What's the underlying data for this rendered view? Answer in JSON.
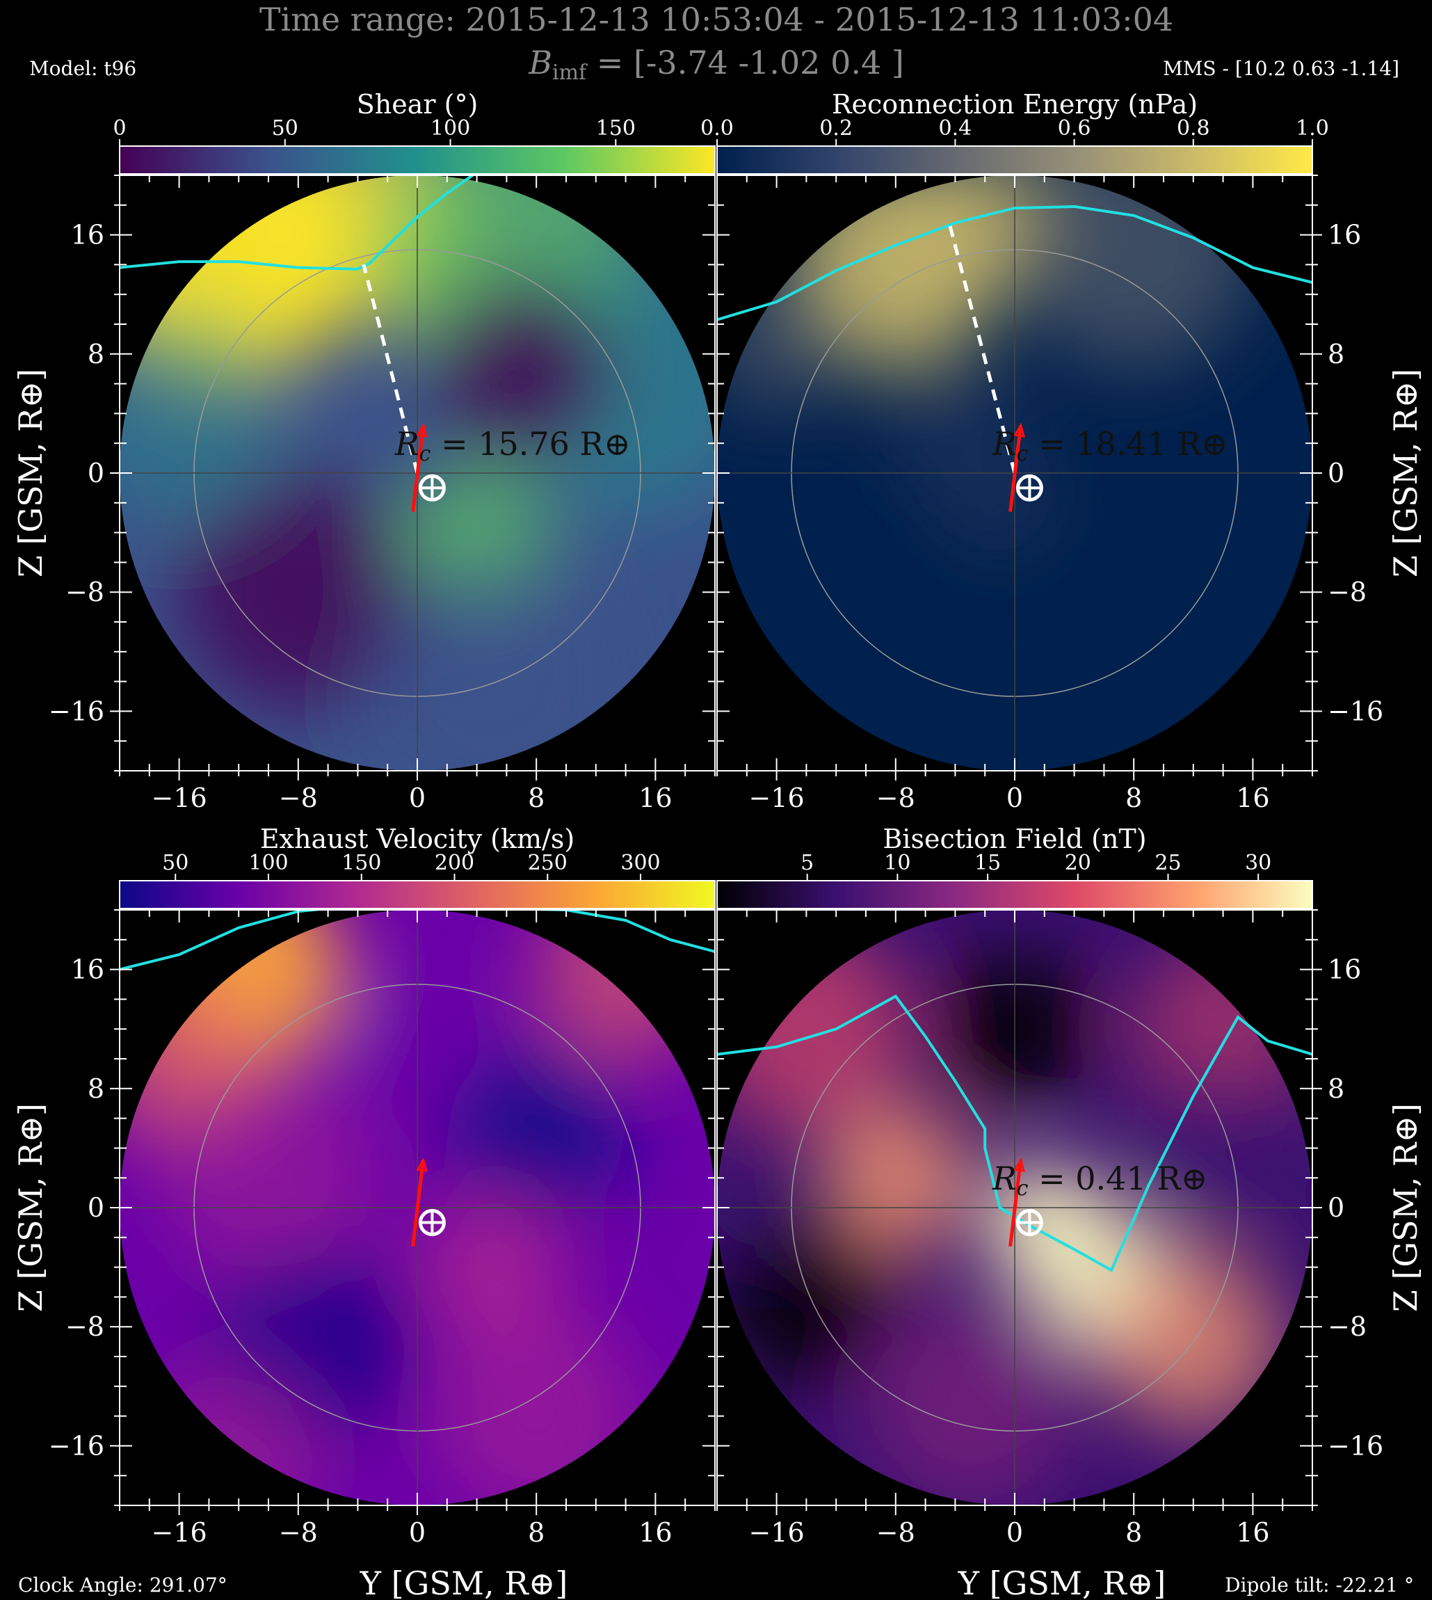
{
  "header": {
    "time_range": "Time range: 2015-12-13 10:53:04 - 2015-12-13 11:03:04",
    "bimf_label": "B",
    "bimf_sub": "imf",
    "bimf_value": " = [-3.74 -1.02 0.4 ]",
    "model": "Model: t96",
    "mms": "MMS - [10.2 0.63 -1.14]"
  },
  "footer": {
    "clock_angle": "Clock Angle: 291.07°",
    "dipole_tilt": "Dipole tilt: -22.21 °",
    "xlabel": "Y [GSM, R⊕]",
    "ylabel": "Z [GSM, R⊕]"
  },
  "chart_data": [
    {
      "type": "heatmap",
      "title": "Shear (°)",
      "colormap": [
        "#440154",
        "#3b528b",
        "#21918c",
        "#5ec962",
        "#fde725"
      ],
      "colorbar_ticks": [
        "0",
        "50",
        "100",
        "150"
      ],
      "colorbar_range": [
        0,
        180
      ],
      "xlim": [
        -20,
        20
      ],
      "ylim": [
        -20,
        20
      ],
      "xticks": [
        -16,
        -8,
        0,
        8,
        16
      ],
      "yticks": [
        -16,
        -8,
        0,
        8,
        16
      ],
      "rc_label": "R",
      "rc_sub": "c",
      "rc_value": " = 15.76 R⊕",
      "dashed_line": [
        [
          0,
          0
        ],
        [
          -3.6,
          14.0
        ]
      ],
      "cyan_line": [
        [
          -20,
          13.8
        ],
        [
          -16,
          14.2
        ],
        [
          -12,
          14.2
        ],
        [
          -8,
          13.8
        ],
        [
          -4,
          13.7
        ],
        [
          -3.2,
          14.1
        ],
        [
          0,
          17.2
        ],
        [
          2,
          18.8
        ],
        [
          4,
          20.2
        ]
      ],
      "red_arrow": [
        [
          -0.3,
          -2.6
        ],
        [
          0.4,
          3.2
        ]
      ],
      "earth": [
        1,
        -1
      ]
    },
    {
      "type": "heatmap",
      "title": "Reconnection Energy (nPa)",
      "colormap": [
        "#00204d",
        "#31446b",
        "#666970",
        "#958f78",
        "#cbba69",
        "#ffea46"
      ],
      "colorbar_ticks": [
        "0.0",
        "0.2",
        "0.4",
        "0.6",
        "0.8",
        "1.0"
      ],
      "colorbar_range": [
        0,
        1
      ],
      "xlim": [
        -20,
        20
      ],
      "ylim": [
        -20,
        20
      ],
      "xticks": [
        -16,
        -8,
        0,
        8,
        16
      ],
      "yticks": [
        -16,
        -8,
        0,
        8,
        16
      ],
      "rc_label": "R",
      "rc_sub": "c",
      "rc_value": " = 18.41 R⊕",
      "dashed_line": [
        [
          0,
          0
        ],
        [
          -4.4,
          16.8
        ]
      ],
      "cyan_line": [
        [
          -20,
          10.3
        ],
        [
          -16,
          11.5
        ],
        [
          -12,
          13.6
        ],
        [
          -8,
          15.3
        ],
        [
          -4,
          16.8
        ],
        [
          0,
          17.8
        ],
        [
          4,
          17.9
        ],
        [
          8,
          17.3
        ],
        [
          12,
          15.8
        ],
        [
          16,
          13.8
        ],
        [
          20,
          12.8
        ]
      ],
      "red_arrow": [
        [
          -0.3,
          -2.6
        ],
        [
          0.4,
          3.2
        ]
      ],
      "earth": [
        1,
        -1
      ]
    },
    {
      "type": "heatmap",
      "title": "Exhaust Velocity (km/s)",
      "colormap": [
        "#0d0887",
        "#6a00a8",
        "#b12a90",
        "#e16462",
        "#fca636",
        "#f0f921"
      ],
      "colorbar_ticks": [
        "50",
        "100",
        "150",
        "200",
        "250",
        "300"
      ],
      "colorbar_range": [
        20,
        340
      ],
      "xlim": [
        -20,
        20
      ],
      "ylim": [
        -20,
        20
      ],
      "xticks": [
        -16,
        -8,
        0,
        8,
        16
      ],
      "yticks": [
        -16,
        -8,
        0,
        8,
        16
      ],
      "cyan_line": [
        [
          -20,
          16.0
        ],
        [
          -16,
          17.0
        ],
        [
          -12,
          18.8
        ],
        [
          -8,
          19.9
        ],
        [
          -4,
          20.3
        ],
        [
          10,
          20.0
        ],
        [
          14,
          19.3
        ],
        [
          17,
          18.0
        ],
        [
          20,
          17.2
        ]
      ],
      "red_arrow": [
        [
          -0.3,
          -2.6
        ],
        [
          0.4,
          3.2
        ]
      ],
      "earth": [
        1,
        -1
      ]
    },
    {
      "type": "heatmap",
      "title": "Bisection Field (nT)",
      "colormap": [
        "#000004",
        "#3b0f70",
        "#8c2981",
        "#de4968",
        "#fe9f6d",
        "#fcfdbf"
      ],
      "colorbar_ticks": [
        "5",
        "10",
        "15",
        "20",
        "25",
        "30"
      ],
      "colorbar_range": [
        0,
        33
      ],
      "xlim": [
        -20,
        20
      ],
      "ylim": [
        -20,
        20
      ],
      "xticks": [
        -16,
        -8,
        0,
        8,
        16
      ],
      "yticks": [
        -16,
        -8,
        0,
        8,
        16
      ],
      "rc_label": "R",
      "rc_sub": "c",
      "rc_value": " = 0.41 R⊕",
      "cyan_line": [
        [
          -20,
          10.3
        ],
        [
          -16,
          10.8
        ],
        [
          -12,
          12.0
        ],
        [
          -8,
          14.2
        ],
        [
          -6,
          11.5
        ],
        [
          -4,
          8.5
        ],
        [
          -2,
          5.3
        ],
        [
          -2,
          4.0
        ],
        [
          -1,
          0
        ],
        [
          1,
          -1.2
        ],
        [
          4,
          -2.8
        ],
        [
          6.5,
          -4.2
        ],
        [
          9,
          1.5
        ],
        [
          12,
          7.5
        ],
        [
          15,
          12.8
        ],
        [
          16,
          12.0
        ],
        [
          17,
          11.2
        ],
        [
          20,
          10.3
        ]
      ],
      "red_arrow": [
        [
          -0.3,
          -2.6
        ],
        [
          0.4,
          3.2
        ]
      ],
      "earth": [
        1,
        -1
      ]
    }
  ]
}
